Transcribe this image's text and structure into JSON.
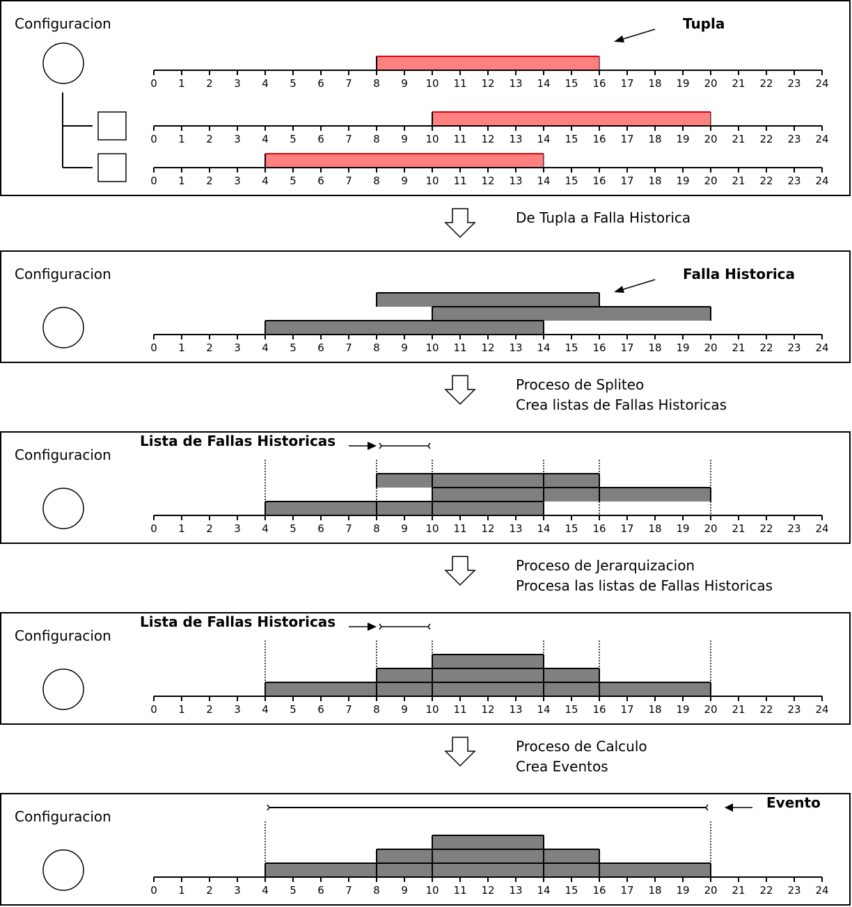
{
  "colors": {
    "tuple_fill": "#ff8080",
    "tuple_stroke": "#e00000",
    "fault_fill": "#808080",
    "stroke": "#000000"
  },
  "axis": {
    "min": 0,
    "max": 24
  },
  "panels": [
    {
      "config_label": "Configuracion",
      "title": "Tupla",
      "title_arrow": "arrow-pointing-left-down",
      "tree": true,
      "timelines": [
        {
          "bars": [
            {
              "start": 8,
              "end": 16,
              "row": 0,
              "style": "tuple"
            }
          ]
        },
        {
          "bars": [
            {
              "start": 10,
              "end": 20,
              "row": 0,
              "style": "tuple"
            }
          ]
        },
        {
          "bars": [
            {
              "start": 4,
              "end": 14,
              "row": 0,
              "style": "tuple"
            }
          ]
        }
      ]
    },
    {
      "config_label": "Configuracion",
      "title": "Falla Historica",
      "title_arrow": "arrow-pointing-left-down",
      "timelines": [
        {
          "bars": [
            {
              "start": 8,
              "end": 16,
              "row": 2
            },
            {
              "start": 10,
              "end": 20,
              "row": 1
            },
            {
              "start": 4,
              "end": 14,
              "row": 0
            }
          ]
        }
      ]
    },
    {
      "config_label": "Configuracion",
      "list_title": "Lista de Fallas Historicas",
      "bracket": [
        8,
        10
      ],
      "dotted": [
        4,
        8,
        10,
        14,
        16,
        20
      ],
      "timelines": [
        {
          "bars": [
            {
              "start": 8,
              "end": 10,
              "row": 2
            },
            {
              "start": 10,
              "end": 14,
              "row": 2
            },
            {
              "start": 14,
              "end": 16,
              "row": 2
            },
            {
              "start": 10,
              "end": 14,
              "row": 1
            },
            {
              "start": 14,
              "end": 16,
              "row": 1
            },
            {
              "start": 16,
              "end": 20,
              "row": 1
            },
            {
              "start": 4,
              "end": 8,
              "row": 0
            },
            {
              "start": 8,
              "end": 10,
              "row": 0
            },
            {
              "start": 10,
              "end": 14,
              "row": 0
            }
          ]
        }
      ]
    },
    {
      "config_label": "Configuracion",
      "list_title": "Lista de Fallas Historicas",
      "bracket": [
        8,
        10
      ],
      "dotted": [
        4,
        8,
        10,
        14,
        16,
        20
      ],
      "timelines": [
        {
          "bars": [
            {
              "start": 10,
              "end": 14,
              "row": 2
            },
            {
              "start": 8,
              "end": 10,
              "row": 1
            },
            {
              "start": 10,
              "end": 14,
              "row": 1
            },
            {
              "start": 14,
              "end": 16,
              "row": 1
            },
            {
              "start": 4,
              "end": 8,
              "row": 0
            },
            {
              "start": 8,
              "end": 10,
              "row": 0
            },
            {
              "start": 10,
              "end": 14,
              "row": 0
            },
            {
              "start": 14,
              "end": 16,
              "row": 0
            },
            {
              "start": 16,
              "end": 20,
              "row": 0
            }
          ]
        }
      ]
    },
    {
      "config_label": "Configuracion",
      "title": "Evento",
      "event_bracket": [
        4,
        20
      ],
      "dotted": [
        4,
        20
      ],
      "timelines": [
        {
          "bars": [
            {
              "start": 10,
              "end": 14,
              "row": 2
            },
            {
              "start": 8,
              "end": 10,
              "row": 1
            },
            {
              "start": 10,
              "end": 14,
              "row": 1
            },
            {
              "start": 14,
              "end": 16,
              "row": 1
            },
            {
              "start": 4,
              "end": 8,
              "row": 0
            },
            {
              "start": 8,
              "end": 10,
              "row": 0
            },
            {
              "start": 10,
              "end": 14,
              "row": 0
            },
            {
              "start": 14,
              "end": 16,
              "row": 0
            },
            {
              "start": 16,
              "end": 20,
              "row": 0
            }
          ]
        }
      ]
    }
  ],
  "transitions": [
    {
      "lines": [
        "De Tupla a Falla Historica"
      ]
    },
    {
      "lines": [
        "Proceso de Spliteo",
        "Crea listas de Fallas Historicas"
      ]
    },
    {
      "lines": [
        "Proceso de Jerarquizacion",
        "Procesa las listas de Fallas Historicas"
      ]
    },
    {
      "lines": [
        "Proceso de Calculo",
        "Crea Eventos"
      ]
    }
  ]
}
